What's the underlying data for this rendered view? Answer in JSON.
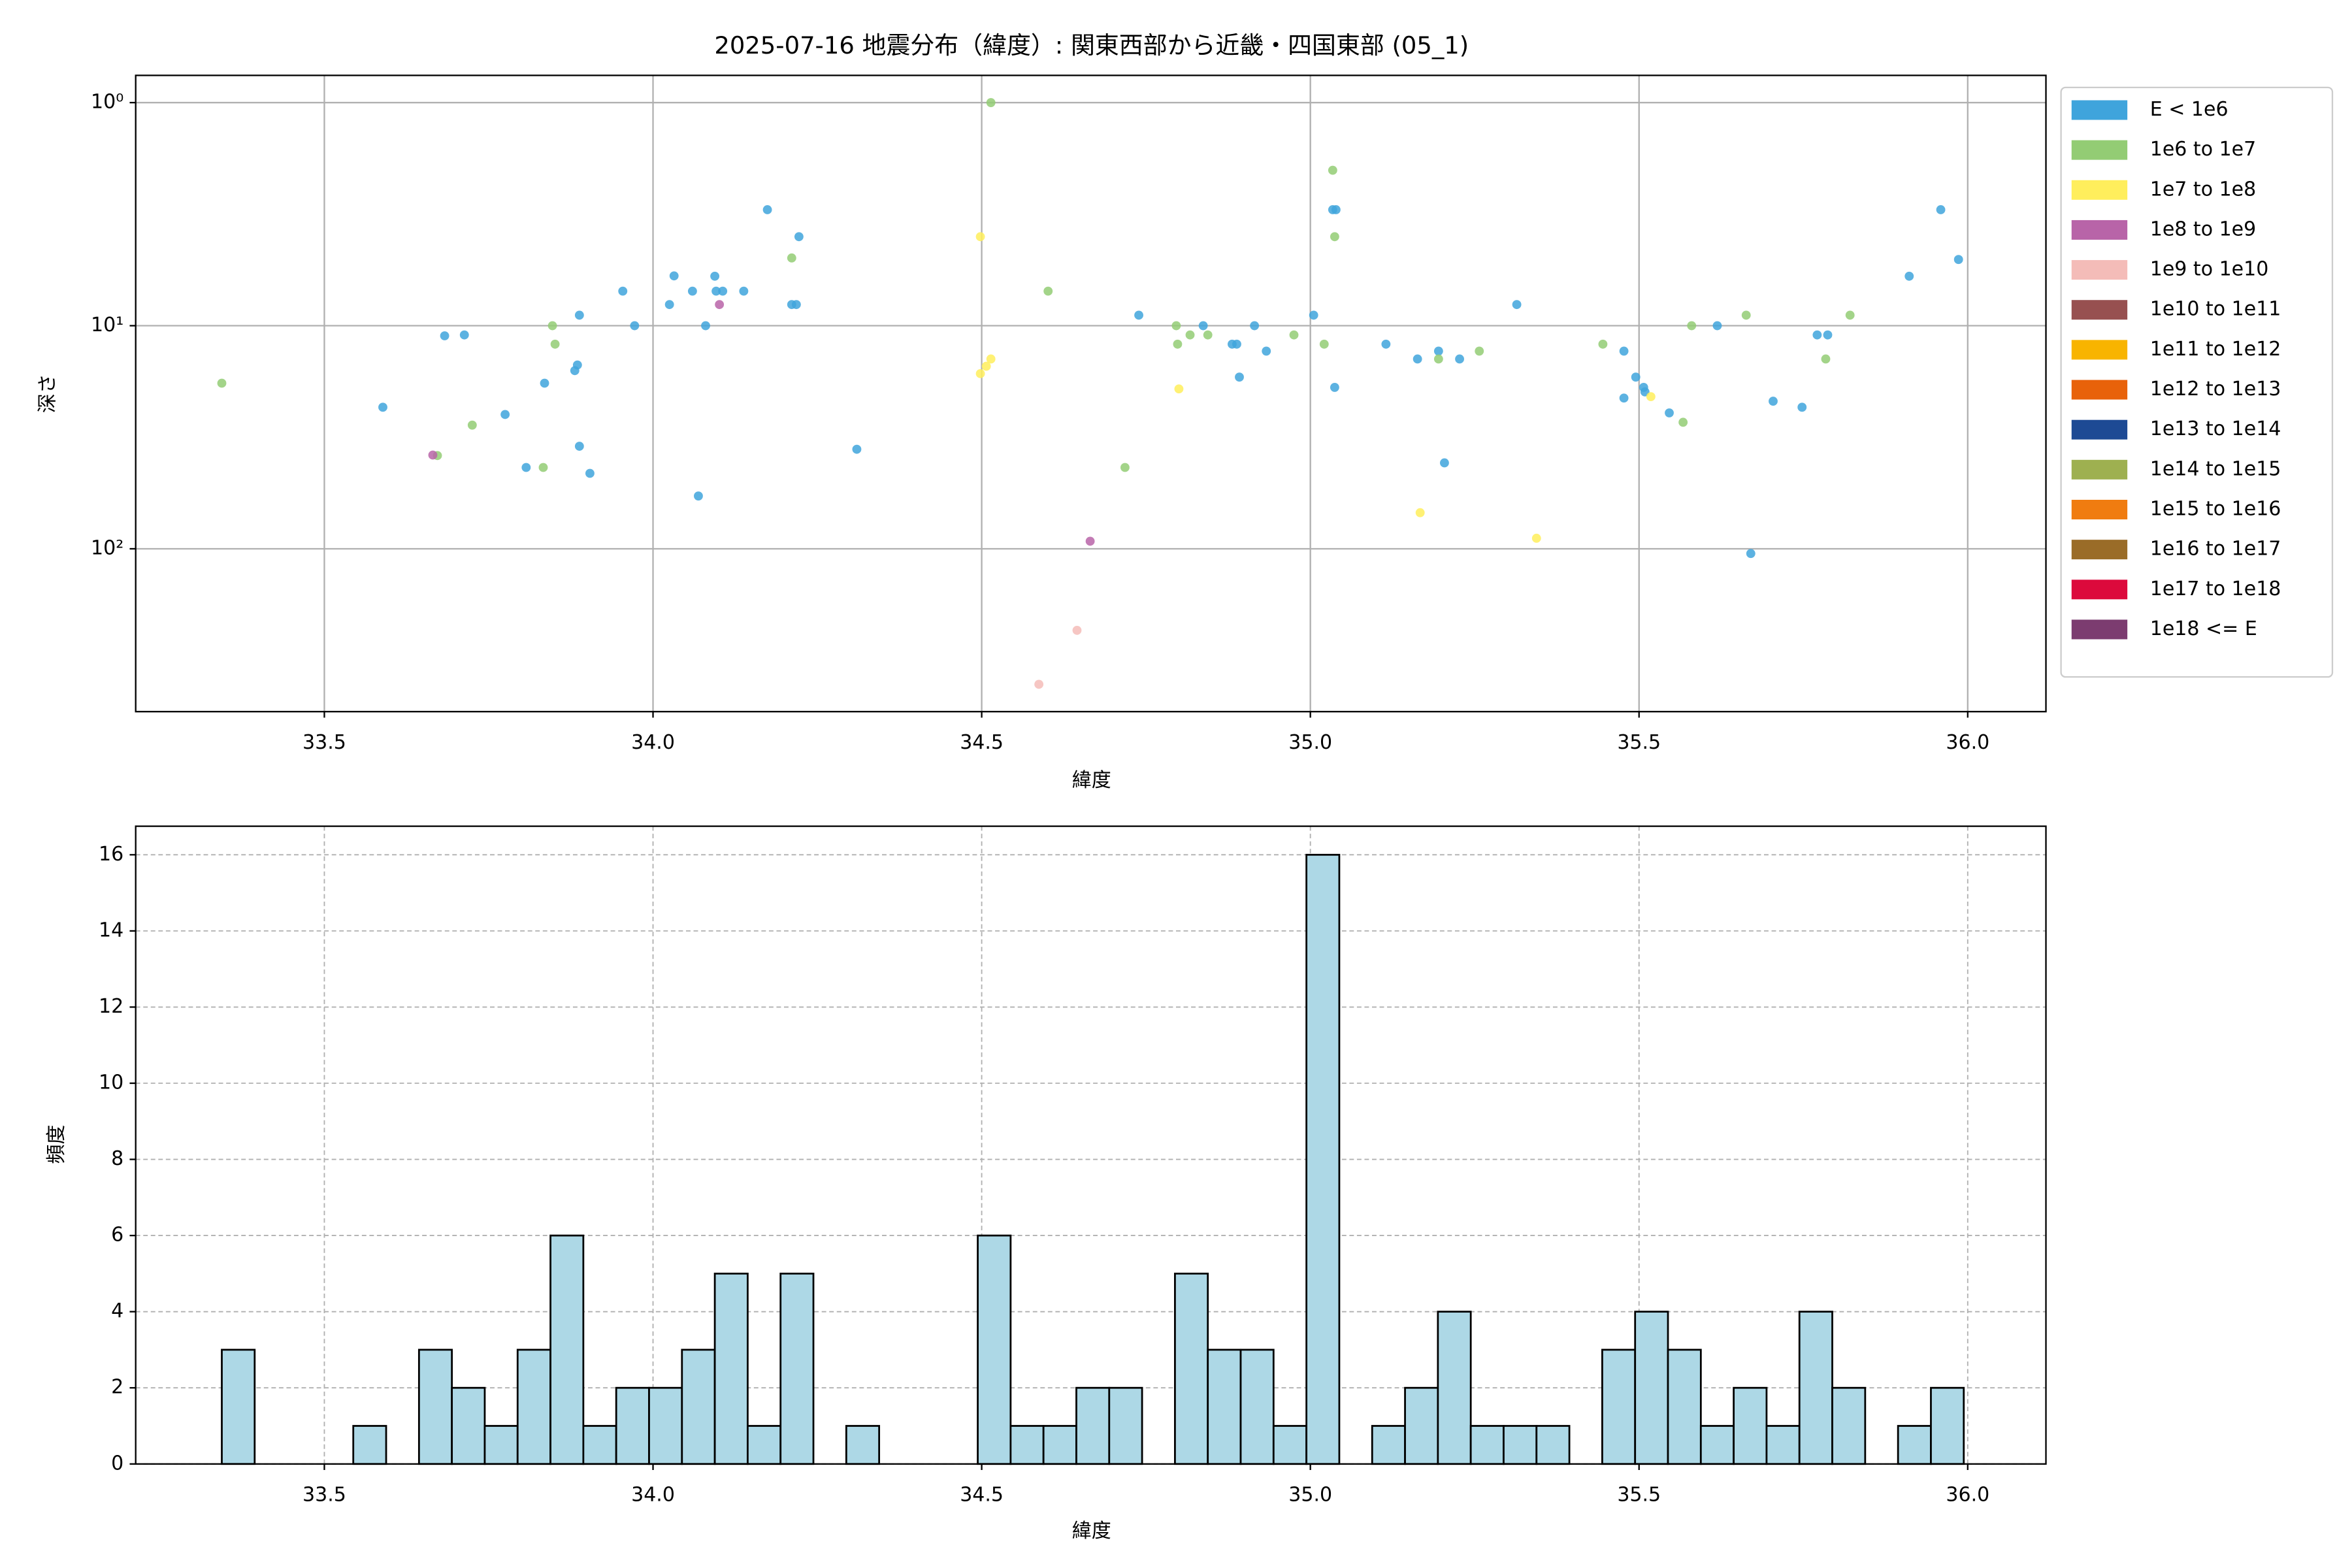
{
  "chart_data": [
    {
      "type": "scatter",
      "title": "2025-07-16 地震分布（緯度）: 関東西部から近畿・四国東部 (05_1)",
      "xlabel": "緯度",
      "ylabel": "深さ",
      "xlim": [
        33.213,
        36.119
      ],
      "xticks": [
        33.5,
        {
          "value": 34,
          "label": "34.0"
        },
        34.5,
        {
          "value": 35,
          "label": "35.0"
        },
        35.5,
        {
          "value": 36,
          "label": "36.0"
        }
      ],
      "ylim": [
        0.755,
        537
      ],
      "y_scale": "log",
      "y_inverted": true,
      "yticks": [
        {
          "value": 1,
          "label": "10⁰"
        },
        {
          "value": 10,
          "label": "10¹"
        },
        {
          "value": 100,
          "label": "10²"
        }
      ],
      "grid": true,
      "grid_style": "solid",
      "legend": "outside right",
      "series": [
        {
          "name": "E < 1e6",
          "color": "#3fa4dc",
          "x": [
            33.589,
            33.683,
            33.713,
            33.775,
            33.807,
            33.835,
            33.881,
            33.885,
            33.888,
            33.888,
            33.904,
            33.954,
            33.972,
            34.025,
            34.032,
            34.06,
            34.069,
            34.08,
            34.094,
            34.096,
            34.106,
            34.138,
            34.174,
            34.211,
            34.218,
            34.222,
            34.31,
            34.739,
            34.837,
            34.881,
            34.888,
            34.892,
            34.915,
            34.933,
            35.005,
            35.034,
            35.039,
            35.037,
            35.115,
            35.163,
            35.195,
            35.204,
            35.227,
            35.314,
            35.477,
            35.477,
            35.495,
            35.507,
            35.509,
            35.546,
            35.619,
            35.67,
            35.704,
            35.748,
            35.771,
            35.787,
            35.911,
            35.959,
            35.986
          ],
          "values": [
            23.2,
            11.1,
            11.0,
            25.0,
            43.2,
            18.1,
            15.9,
            15.0,
            8.97,
            34.7,
            45.9,
            7.0,
            10,
            8.04,
            5.98,
            7.0,
            58,
            10,
            6.0,
            7.0,
            7.0,
            7.0,
            3.02,
            8.04,
            8.04,
            3.99,
            35.8,
            8.97,
            10,
            12.1,
            12.1,
            17.0,
            10,
            13.0,
            8.97,
            3.02,
            3.02,
            18.9,
            12.1,
            14.1,
            13.0,
            41.2,
            14.1,
            8.04,
            21.1,
            13.0,
            17.0,
            18.9,
            19.8,
            24.6,
            10,
            105,
            21.8,
            23.2,
            11,
            11,
            6.0,
            3.02,
            5.05
          ]
        },
        {
          "name": "1e6 to 1e7",
          "color": "#93cc74",
          "x": [
            33.344,
            33.672,
            33.725,
            33.833,
            33.847,
            33.851,
            34.211,
            34.514,
            34.601,
            34.718,
            34.796,
            34.798,
            34.817,
            34.844,
            34.975,
            35.021,
            35.034,
            35.037,
            35.195,
            35.257,
            35.445,
            35.567,
            35.58,
            35.663,
            35.784,
            35.821
          ],
          "values": [
            18.1,
            38.2,
            27.9,
            43.2,
            10,
            12.1,
            4.97,
            1.0,
            7.0,
            43.2,
            10,
            12.1,
            11,
            11,
            11,
            12.1,
            2.01,
            3.99,
            14.1,
            13.0,
            12.1,
            27.1,
            10,
            8.97,
            14.1,
            8.97
          ]
        },
        {
          "name": "1e7 to 1e8",
          "color": "#ffee5c",
          "x": [
            34.498,
            34.498,
            34.507,
            34.514,
            34.8,
            35.167,
            35.344,
            35.518
          ],
          "values": [
            3.99,
            16.4,
            15.2,
            14.1,
            19.2,
            68.9,
            89.7,
            20.8
          ]
        },
        {
          "name": "1e8 to 1e9",
          "color": "#b864a8",
          "x": [
            33.665,
            34.101,
            34.665
          ],
          "values": [
            38.0,
            8.04,
            92.5
          ]
        },
        {
          "name": "1e9 to 1e10",
          "color": "#f4bcb8",
          "x": [
            34.587,
            34.645
          ],
          "values": [
            405,
            232
          ]
        },
        {
          "name": "1e10 to 1e11",
          "color": "#975050",
          "x": [],
          "values": []
        },
        {
          "name": "1e11 to 1e12",
          "color": "#f8b400",
          "x": [],
          "values": []
        },
        {
          "name": "1e12 to 1e13",
          "color": "#e8620a",
          "x": [],
          "values": []
        },
        {
          "name": "1e13 to 1e14",
          "color": "#1d4a94",
          "x": [],
          "values": []
        },
        {
          "name": "1e14 to 1e15",
          "color": "#9eb050",
          "x": [],
          "values": []
        },
        {
          "name": "1e15 to 1e16",
          "color": "#f07c10",
          "x": [],
          "values": []
        },
        {
          "name": "1e16 to 1e17",
          "color": "#9a6c28",
          "x": [],
          "values": []
        },
        {
          "name": "1e17 to 1e18",
          "color": "#dc0a3c",
          "x": [],
          "values": []
        },
        {
          "name": "1e18 <= E",
          "color": "#7c3c70",
          "x": [],
          "values": []
        }
      ]
    },
    {
      "type": "histogram",
      "xlabel": "緯度",
      "ylabel": "頻度",
      "xlim": [
        33.213,
        36.119
      ],
      "xticks": [
        33.5,
        {
          "value": 34,
          "label": "34.0"
        },
        34.5,
        {
          "value": 35,
          "label": "35.0"
        },
        35.5,
        {
          "value": 36,
          "label": "36.0"
        }
      ],
      "ylim": [
        0,
        16.75
      ],
      "yticks": [
        0,
        2,
        4,
        6,
        8,
        10,
        12,
        14,
        16
      ],
      "grid": true,
      "grid_style": "dashed",
      "color": "#add8e6",
      "edgecolor": "#000000",
      "bins": [
        33.344,
        33.394,
        33.444,
        33.494,
        33.544,
        33.594,
        33.644,
        33.694,
        33.744,
        33.794,
        33.844,
        33.894,
        33.944,
        33.994,
        34.044,
        34.094,
        34.144,
        34.194,
        34.244,
        34.294,
        34.344,
        34.394,
        34.444,
        34.494,
        34.544,
        34.594,
        34.644,
        34.694,
        34.744,
        34.794,
        34.844,
        34.894,
        34.944,
        34.994,
        35.044,
        35.094,
        35.144,
        35.194,
        35.244,
        35.294,
        35.344,
        35.394,
        35.444,
        35.494,
        35.544,
        35.594,
        35.644,
        35.694,
        35.744,
        35.794,
        35.844,
        35.894,
        35.944,
        35.994
      ],
      "counts": [
        3,
        0,
        0,
        0,
        1,
        0,
        3,
        2,
        1,
        3,
        6,
        1,
        2,
        2,
        3,
        5,
        1,
        5,
        0,
        1,
        0,
        0,
        0,
        6,
        1,
        1,
        2,
        2,
        0,
        5,
        3,
        3,
        1,
        16,
        0,
        1,
        2,
        4,
        1,
        1,
        1,
        0,
        3,
        4,
        3,
        1,
        2,
        1,
        4,
        2,
        0,
        1,
        2
      ]
    }
  ]
}
